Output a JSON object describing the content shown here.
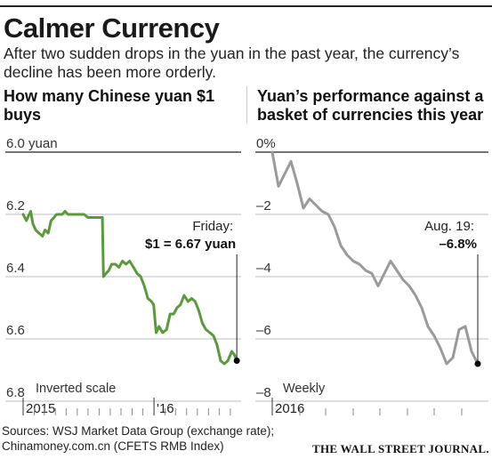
{
  "header": {
    "title": "Calmer Currency",
    "subtitle": "After two sudden drops in the yuan in the past year, the currency’s decline has been more orderly."
  },
  "footer": {
    "sources_line1": "Sources: WSJ Market Data Group (exchange rate);",
    "sources_line2": "Chinamoney.com.cn (CFETS RMB Index)",
    "publisher": "THE WALL STREET JOURNAL."
  },
  "colors": {
    "left_series": "#5a9a3c",
    "right_series": "#9a9a9a",
    "grid": "#bdbdbd",
    "axis": "#333333"
  },
  "chart_data": [
    {
      "type": "line",
      "title": "How many Chinese yuan $1 buys",
      "axis_note": "Inverted scale",
      "y_inverted": true,
      "ylim": [
        6.0,
        6.8
      ],
      "y_ticks": [
        {
          "value": 6.0,
          "label": "6.0 yuan"
        },
        {
          "value": 6.2,
          "label": "6.2"
        },
        {
          "value": 6.4,
          "label": "6.4"
        },
        {
          "value": 6.6,
          "label": "6.6"
        },
        {
          "value": 6.8,
          "label": "6.8"
        }
      ],
      "xlim": [
        "2015-01-01",
        "2016-08-31"
      ],
      "x_ticks": [
        {
          "date": "2015-01-01",
          "label": "2015"
        },
        {
          "date": "2016-01-01",
          "label": "'16"
        }
      ],
      "annotation": {
        "date": "2016-08-19",
        "value": 6.67,
        "line1": "Friday:",
        "line2": "$1 = 6.67 yuan"
      },
      "series": [
        {
          "x": [
            "2015-01-01",
            "2015-01-10",
            "2015-01-22",
            "2015-01-28",
            "2015-02-05",
            "2015-02-14",
            "2015-02-24",
            "2015-03-03",
            "2015-03-12",
            "2015-03-20",
            "2015-03-28",
            "2015-04-04",
            "2015-04-12",
            "2015-04-20",
            "2015-04-28",
            "2015-05-06",
            "2015-05-14",
            "2015-05-22",
            "2015-05-30",
            "2015-06-08",
            "2015-06-20",
            "2015-07-01",
            "2015-07-15",
            "2015-07-28",
            "2015-08-05",
            "2015-08-10",
            "2015-08-11",
            "2015-08-13",
            "2015-08-20",
            "2015-08-28",
            "2015-09-05",
            "2015-09-15",
            "2015-09-25",
            "2015-10-05",
            "2015-10-15",
            "2015-10-25",
            "2015-11-05",
            "2015-11-15",
            "2015-11-25",
            "2015-12-05",
            "2015-12-15",
            "2015-12-25",
            "2015-12-31",
            "2016-01-07",
            "2016-01-15",
            "2016-01-25",
            "2016-02-05",
            "2016-02-15",
            "2016-02-25",
            "2016-03-05",
            "2016-03-15",
            "2016-03-25",
            "2016-04-05",
            "2016-04-15",
            "2016-04-25",
            "2016-05-05",
            "2016-05-15",
            "2016-05-25",
            "2016-06-05",
            "2016-06-15",
            "2016-06-25",
            "2016-07-05",
            "2016-07-15",
            "2016-07-25",
            "2016-08-05",
            "2016-08-12",
            "2016-08-19"
          ],
          "y": [
            6.2,
            6.22,
            6.19,
            6.23,
            6.25,
            6.26,
            6.27,
            6.25,
            6.26,
            6.22,
            6.21,
            6.2,
            6.2,
            6.2,
            6.19,
            6.2,
            6.2,
            6.2,
            6.2,
            6.2,
            6.2,
            6.21,
            6.21,
            6.21,
            6.21,
            6.21,
            6.28,
            6.4,
            6.39,
            6.38,
            6.36,
            6.36,
            6.37,
            6.35,
            6.36,
            6.35,
            6.37,
            6.39,
            6.4,
            6.43,
            6.47,
            6.48,
            6.49,
            6.58,
            6.56,
            6.58,
            6.57,
            6.52,
            6.52,
            6.5,
            6.49,
            6.46,
            6.48,
            6.47,
            6.48,
            6.51,
            6.55,
            6.57,
            6.58,
            6.59,
            6.62,
            6.67,
            6.68,
            6.67,
            6.64,
            6.65,
            6.67
          ]
        }
      ]
    },
    {
      "type": "line",
      "title": "Yuan’s performance against a basket of currencies this year",
      "axis_note": "Weekly",
      "ylim": [
        -8,
        0
      ],
      "y_ticks": [
        {
          "value": 0,
          "label": "0%"
        },
        {
          "value": -2,
          "label": "–2"
        },
        {
          "value": -4,
          "label": "–4"
        },
        {
          "value": -6,
          "label": "–6"
        },
        {
          "value": -8,
          "label": "–8"
        }
      ],
      "xlim": [
        "2016-01-01",
        "2016-08-31"
      ],
      "x_ticks": [
        {
          "date": "2016-01-01",
          "label": "2016"
        }
      ],
      "annotation": {
        "date": "2016-08-19",
        "value": -6.8,
        "line1": "Aug. 19:",
        "line2": "–6.8%"
      },
      "series": [
        {
          "x": [
            "2016-01-01",
            "2016-01-08",
            "2016-01-15",
            "2016-01-22",
            "2016-01-29",
            "2016-02-05",
            "2016-02-12",
            "2016-02-19",
            "2016-02-26",
            "2016-03-04",
            "2016-03-11",
            "2016-03-18",
            "2016-03-25",
            "2016-04-01",
            "2016-04-08",
            "2016-04-15",
            "2016-04-22",
            "2016-04-29",
            "2016-05-06",
            "2016-05-13",
            "2016-05-20",
            "2016-05-27",
            "2016-06-03",
            "2016-06-10",
            "2016-06-17",
            "2016-06-24",
            "2016-07-01",
            "2016-07-08",
            "2016-07-15",
            "2016-07-22",
            "2016-07-29",
            "2016-08-05",
            "2016-08-12",
            "2016-08-19"
          ],
          "y": [
            0.0,
            -1.1,
            -0.7,
            -0.3,
            -1.0,
            -1.8,
            -1.5,
            -1.7,
            -1.9,
            -2.0,
            -2.4,
            -3.0,
            -3.3,
            -3.5,
            -3.6,
            -3.8,
            -3.9,
            -4.3,
            -3.9,
            -3.5,
            -3.8,
            -4.1,
            -4.3,
            -4.6,
            -5.0,
            -5.6,
            -5.9,
            -6.3,
            -6.8,
            -6.6,
            -5.7,
            -5.6,
            -6.4,
            -6.8
          ]
        }
      ]
    }
  ]
}
